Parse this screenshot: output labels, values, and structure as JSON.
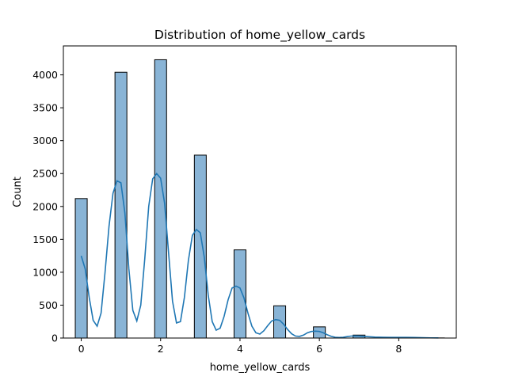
{
  "chart_data": {
    "type": "bar",
    "title": "Distribution of home_yellow_cards",
    "xlabel": "home_yellow_cards",
    "ylabel": "Count",
    "xlim": [
      -0.45,
      9.45
    ],
    "ylim": [
      0,
      4440
    ],
    "xticks": [
      0,
      2,
      4,
      6,
      8
    ],
    "yticks": [
      0,
      500,
      1000,
      1500,
      2000,
      2500,
      3000,
      3500,
      4000
    ],
    "bin_width": 0.3,
    "bars": [
      {
        "x": 0,
        "value": 2120
      },
      {
        "x": 1,
        "value": 4040
      },
      {
        "x": 2,
        "value": 4230
      },
      {
        "x": 3,
        "value": 2780
      },
      {
        "x": 4,
        "value": 1340
      },
      {
        "x": 5,
        "value": 490
      },
      {
        "x": 6,
        "value": 170
      },
      {
        "x": 7,
        "value": 45
      },
      {
        "x": 8,
        "value": 8
      },
      {
        "x": 9,
        "value": 2
      }
    ],
    "kde": {
      "name": "",
      "color": "#1f77b4",
      "x": [
        0,
        0.1,
        0.2,
        0.3,
        0.4,
        0.5,
        0.6,
        0.7,
        0.8,
        0.9,
        1.0,
        1.1,
        1.2,
        1.3,
        1.4,
        1.5,
        1.6,
        1.7,
        1.8,
        1.9,
        2.0,
        2.1,
        2.2,
        2.3,
        2.4,
        2.5,
        2.6,
        2.7,
        2.8,
        2.9,
        3.0,
        3.1,
        3.2,
        3.3,
        3.4,
        3.5,
        3.6,
        3.7,
        3.8,
        3.9,
        4.0,
        4.1,
        4.2,
        4.3,
        4.4,
        4.5,
        4.6,
        4.7,
        4.8,
        4.9,
        5.0,
        5.1,
        5.2,
        5.3,
        5.4,
        5.5,
        5.6,
        5.7,
        5.8,
        5.9,
        6.0,
        6.1,
        6.2,
        6.3,
        6.4,
        6.5,
        6.6,
        6.7,
        6.8,
        6.9,
        7.0,
        7.2,
        7.4,
        7.6,
        7.8,
        8.0,
        8.2,
        8.4,
        8.6,
        8.8,
        9.0
      ],
      "y": [
        1250,
        1050,
        620,
        270,
        180,
        380,
        1000,
        1700,
        2200,
        2390,
        2360,
        1900,
        1050,
        420,
        260,
        500,
        1200,
        2000,
        2420,
        2500,
        2430,
        2050,
        1300,
        560,
        230,
        250,
        620,
        1180,
        1560,
        1650,
        1600,
        1230,
        650,
        250,
        120,
        150,
        330,
        580,
        760,
        790,
        760,
        610,
        380,
        180,
        80,
        60,
        110,
        190,
        260,
        280,
        270,
        210,
        130,
        65,
        30,
        25,
        45,
        80,
        100,
        105,
        100,
        80,
        50,
        25,
        12,
        8,
        12,
        22,
        30,
        32,
        30,
        22,
        15,
        12,
        10,
        10,
        10,
        8,
        5,
        3,
        2
      ]
    },
    "bar_color": "#89b4d6",
    "grid": false,
    "legend": "none"
  }
}
